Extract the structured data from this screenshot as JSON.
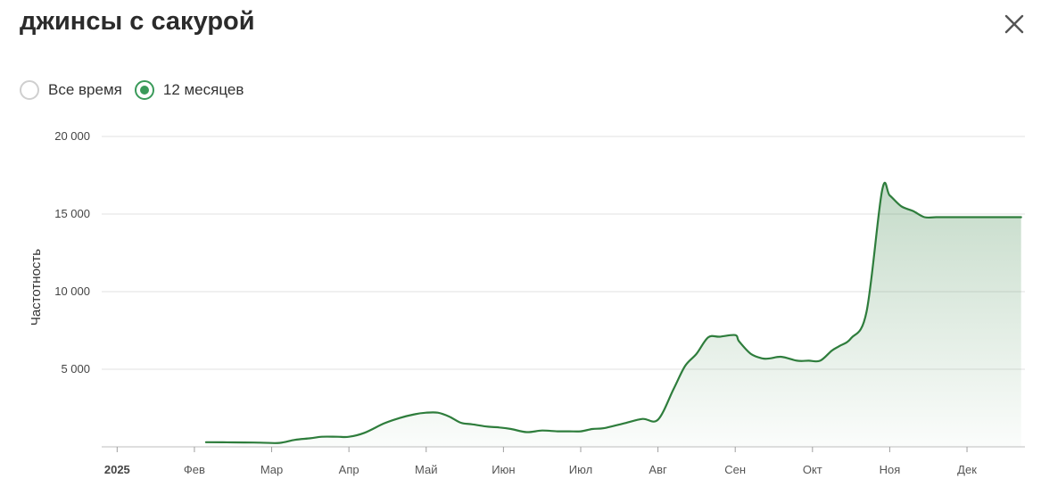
{
  "header": {
    "title": "джинсы с сакурой",
    "close_icon": "close-icon"
  },
  "period": {
    "options": [
      {
        "label": "Все время",
        "selected": false
      },
      {
        "label": "12 месяцев",
        "selected": true
      }
    ]
  },
  "colors": {
    "line": "#2e7d3c",
    "accent": "#3a9a5a",
    "grid": "#e2e2e2"
  },
  "chart_data": {
    "type": "area",
    "title": "",
    "xlabel": "",
    "ylabel": "Частотность",
    "ylim": [
      0,
      20000
    ],
    "yticks": [
      5000,
      10000,
      15000,
      20000
    ],
    "ytick_labels": [
      "5 000",
      "10 000",
      "15 000",
      "20 000"
    ],
    "xlim": [
      -0.2,
      11.75
    ],
    "xticks": [
      {
        "label": "2025",
        "pos": 0,
        "bold": true
      },
      {
        "label": "Фев",
        "pos": 1
      },
      {
        "label": "Мар",
        "pos": 2
      },
      {
        "label": "Апр",
        "pos": 3
      },
      {
        "label": "Май",
        "pos": 4
      },
      {
        "label": "Июн",
        "pos": 5
      },
      {
        "label": "Июл",
        "pos": 6
      },
      {
        "label": "Авг",
        "pos": 7
      },
      {
        "label": "Сен",
        "pos": 8
      },
      {
        "label": "Окт",
        "pos": 9
      },
      {
        "label": "Ноя",
        "pos": 10
      },
      {
        "label": "Дек",
        "pos": 11
      }
    ],
    "grid": true,
    "series": [
      {
        "x": [
          1.15,
          1.5,
          1.85,
          2.1,
          2.3,
          2.5,
          2.65,
          2.85,
          3.0,
          3.2,
          3.45,
          3.65,
          3.85,
          4.0,
          4.15,
          4.3,
          4.45,
          4.6,
          4.8,
          4.95,
          5.1,
          5.3,
          5.5,
          5.7,
          5.85,
          6.0,
          6.15,
          6.3,
          6.55,
          6.8,
          7.0,
          7.2,
          7.35,
          7.5,
          7.65,
          7.8,
          8.0,
          8.05,
          8.2,
          8.35,
          8.45,
          8.6,
          8.8,
          8.95,
          9.1,
          9.25,
          9.35,
          9.5,
          9.7,
          9.9,
          10.0,
          10.15,
          10.3,
          10.45,
          10.6,
          10.75,
          10.95,
          11.05,
          11.15,
          11.25,
          11.4,
          11.55,
          11.7
        ],
        "y": [
          300,
          290,
          270,
          250,
          450,
          550,
          650,
          650,
          650,
          900,
          1500,
          1850,
          2100,
          2200,
          2200,
          1950,
          1550,
          1450,
          1300,
          1250,
          1150,
          950,
          1050,
          1000,
          1000,
          1000,
          1150,
          1200,
          1500,
          1800,
          1750,
          3700,
          5200,
          6000,
          7050,
          7100,
          7200,
          6800,
          6000,
          5700,
          5700,
          5800,
          5550,
          5550,
          5550,
          6200,
          6500,
          7000,
          8700,
          16500,
          16200,
          15500,
          15200,
          14800,
          14800,
          14800,
          14800,
          14800,
          14800,
          14800,
          14800,
          14800,
          14800
        ]
      }
    ]
  }
}
